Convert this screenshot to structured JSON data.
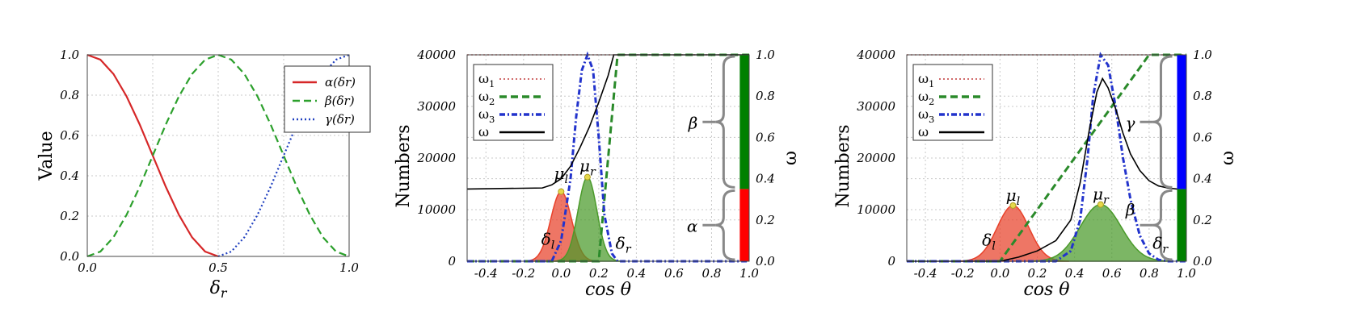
{
  "chart_data": [
    {
      "type": "line",
      "xlabel": "δ",
      "xlabel_sub": "r",
      "ylabel": "Value",
      "xlim": [
        0.0,
        1.0
      ],
      "ylim": [
        0.0,
        1.0
      ],
      "x_ticks": [
        "0.0",
        "0.5",
        "1.0"
      ],
      "y_ticks": [
        "0.0",
        "0.2",
        "0.4",
        "0.6",
        "0.8",
        "1.0"
      ],
      "grid": true,
      "legend_position": "top-right",
      "legend": [
        "α(δr)",
        "β(δr)",
        "γ(δr)"
      ],
      "series": [
        {
          "name": "α(δr)",
          "color": "#d62728",
          "style": "solid",
          "x": [
            0.0,
            0.05,
            0.1,
            0.15,
            0.2,
            0.25,
            0.3,
            0.35,
            0.4,
            0.45,
            0.5
          ],
          "y": [
            1.0,
            0.976,
            0.905,
            0.794,
            0.655,
            0.5,
            0.345,
            0.206,
            0.095,
            0.024,
            0.0
          ]
        },
        {
          "name": "β(δr)",
          "color": "#2ca02c",
          "style": "dashed",
          "x": [
            0.0,
            0.05,
            0.1,
            0.15,
            0.2,
            0.25,
            0.3,
            0.35,
            0.4,
            0.45,
            0.5,
            0.55,
            0.6,
            0.65,
            0.7,
            0.75,
            0.8,
            0.85,
            0.9,
            0.95,
            1.0
          ],
          "y": [
            0.0,
            0.024,
            0.095,
            0.206,
            0.345,
            0.5,
            0.655,
            0.794,
            0.905,
            0.976,
            1.0,
            0.976,
            0.905,
            0.794,
            0.655,
            0.5,
            0.345,
            0.206,
            0.095,
            0.024,
            0.0
          ]
        },
        {
          "name": "γ(δr)",
          "color": "#1f3fbf",
          "style": "dotted",
          "x": [
            0.5,
            0.55,
            0.6,
            0.65,
            0.7,
            0.75,
            0.8,
            0.85,
            0.9,
            0.95,
            1.0
          ],
          "y": [
            0.0,
            0.024,
            0.095,
            0.206,
            0.345,
            0.5,
            0.655,
            0.794,
            0.905,
            0.976,
            1.0
          ]
        }
      ]
    },
    {
      "type": "area",
      "xlabel": "cos θ",
      "ylabel": "Numbers",
      "y2label": "ω",
      "xlim": [
        -0.5,
        1.0
      ],
      "ylim": [
        0,
        40000
      ],
      "y2lim": [
        0.0,
        1.0
      ],
      "x_ticks": [
        "-0.4",
        "-0.2",
        "0.0",
        "0.2",
        "0.4",
        "0.6",
        "0.8",
        "1.0"
      ],
      "y_ticks": [
        "0",
        "10000",
        "20000",
        "30000",
        "40000"
      ],
      "y2_ticks": [
        "0.0",
        "0.2",
        "0.4",
        "0.6",
        "0.8",
        "1.0"
      ],
      "grid": true,
      "legend_position": "top-left",
      "legend": [
        "ω1",
        "ω2",
        "ω3",
        "ω"
      ],
      "annotations": [
        {
          "text": "μl",
          "x": 0.0,
          "y": 15000
        },
        {
          "text": "μr",
          "x": 0.14,
          "y": 16500
        },
        {
          "text": "δl",
          "x": -0.07,
          "y": 2300
        },
        {
          "text": "δr",
          "x": 0.33,
          "y": 1500
        },
        {
          "text": "β",
          "y2_center": 0.67
        },
        {
          "text": "α",
          "y2_center": 0.17
        }
      ],
      "side_bar": [
        {
          "label": "α",
          "from": 0.0,
          "to": 0.35,
          "color": "#ff0000"
        },
        {
          "label": "β",
          "from": 0.35,
          "to": 1.0,
          "color": "#008000"
        }
      ],
      "areas": [
        {
          "name": "left peak",
          "color": "#e8412a",
          "mu": 0.0,
          "sigma": 0.055,
          "peak": 13500
        },
        {
          "name": "right peak",
          "color": "#4a9a2a",
          "mu": 0.14,
          "sigma": 0.05,
          "peak": 16300
        }
      ],
      "series": [
        {
          "name": "ω1",
          "axis": "y2",
          "color": "#d06a6a",
          "style": "dotted",
          "x": [
            -0.5,
            1.0
          ],
          "y": [
            1.0,
            1.0
          ]
        },
        {
          "name": "ω2",
          "axis": "y2",
          "color": "#2a8a2a",
          "style": "dashed",
          "x": [
            -0.5,
            0.2,
            0.3,
            1.0
          ],
          "y": [
            0.0,
            0.0,
            1.0,
            1.0
          ]
        },
        {
          "name": "ω3",
          "axis": "y",
          "color": "#2233cc",
          "style": "dashdot",
          "x": [
            -0.5,
            -0.05,
            0.0,
            0.05,
            0.08,
            0.11,
            0.14,
            0.17,
            0.2,
            0.23,
            0.27,
            0.3,
            1.0
          ],
          "y": [
            0,
            0,
            4000,
            16000,
            28000,
            37000,
            40000,
            37000,
            24000,
            9000,
            1500,
            0,
            0
          ]
        },
        {
          "name": "ω",
          "axis": "y2",
          "color": "#000000",
          "style": "solid",
          "x": [
            -0.5,
            -0.1,
            -0.05,
            0.0,
            0.05,
            0.1,
            0.15,
            0.2,
            0.25,
            0.28,
            1.0
          ],
          "y": [
            0.35,
            0.355,
            0.37,
            0.4,
            0.46,
            0.55,
            0.65,
            0.77,
            0.9,
            1.0,
            1.0
          ]
        }
      ]
    },
    {
      "type": "area",
      "xlabel": "cos θ",
      "ylabel": "Numbers",
      "y2label": "ω",
      "xlim": [
        -0.5,
        1.0
      ],
      "ylim": [
        0,
        40000
      ],
      "y2lim": [
        0.0,
        1.0
      ],
      "x_ticks": [
        "-0.4",
        "-0.2",
        "0.0",
        "0.2",
        "0.4",
        "0.6",
        "0.8",
        "1.0"
      ],
      "y_ticks": [
        "0",
        "10000",
        "20000",
        "30000",
        "40000"
      ],
      "y2_ticks": [
        "0.0",
        "0.2",
        "0.4",
        "0.6",
        "0.8",
        "1.0"
      ],
      "grid": true,
      "legend_position": "top-left",
      "legend": [
        "ω1",
        "ω2",
        "ω3",
        "ω"
      ],
      "annotations": [
        {
          "text": "μl",
          "x": 0.07,
          "y": 10800
        },
        {
          "text": "μr",
          "x": 0.54,
          "y": 11000
        },
        {
          "text": "δl",
          "x": -0.06,
          "y": 2100
        },
        {
          "text": "δr",
          "x": 0.86,
          "y": 1500
        },
        {
          "text": "γ",
          "y2_center": 0.67
        },
        {
          "text": "β",
          "y2_center": 0.25
        }
      ],
      "side_bar": [
        {
          "label": "β",
          "from": 0.0,
          "to": 0.35,
          "color": "#008000"
        },
        {
          "label": "γ",
          "from": 0.35,
          "to": 1.0,
          "color": "#0000ff"
        }
      ],
      "areas": [
        {
          "name": "left peak",
          "color": "#e8412a",
          "mu": 0.07,
          "sigma": 0.085,
          "peak": 10800
        },
        {
          "name": "right peak",
          "color": "#4a9a2a",
          "mu": 0.54,
          "sigma": 0.11,
          "peak": 11000
        }
      ],
      "series": [
        {
          "name": "ω1",
          "axis": "y2",
          "color": "#d06a6a",
          "style": "dotted",
          "x": [
            -0.5,
            1.0
          ],
          "y": [
            1.0,
            1.0
          ]
        },
        {
          "name": "ω2",
          "axis": "y2",
          "color": "#2a8a2a",
          "style": "dashed",
          "x": [
            -0.5,
            0.0,
            0.8,
            1.0
          ],
          "y": [
            0.0,
            0.0,
            1.0,
            1.0
          ]
        },
        {
          "name": "ω3",
          "axis": "y",
          "color": "#2233cc",
          "style": "dashdot",
          "x": [
            -0.5,
            0.3,
            0.38,
            0.43,
            0.47,
            0.5,
            0.54,
            0.58,
            0.62,
            0.66,
            0.7,
            0.75,
            0.8,
            0.85,
            0.9,
            1.0
          ],
          "y": [
            0,
            0,
            2000,
            8000,
            20000,
            32000,
            40000,
            38000,
            30000,
            20000,
            12000,
            5000,
            1500,
            300,
            0,
            0
          ]
        },
        {
          "name": "ω",
          "axis": "y2",
          "color": "#000000",
          "style": "solid",
          "x": [
            -0.5,
            0.0,
            0.1,
            0.2,
            0.3,
            0.38,
            0.43,
            0.48,
            0.52,
            0.55,
            0.58,
            0.62,
            0.66,
            0.7,
            0.75,
            0.8,
            0.85,
            0.9,
            0.95
          ],
          "y": [
            0.0,
            0.0,
            0.02,
            0.05,
            0.1,
            0.2,
            0.38,
            0.64,
            0.82,
            0.885,
            0.84,
            0.74,
            0.62,
            0.52,
            0.44,
            0.39,
            0.365,
            0.355,
            0.35
          ]
        }
      ]
    }
  ]
}
